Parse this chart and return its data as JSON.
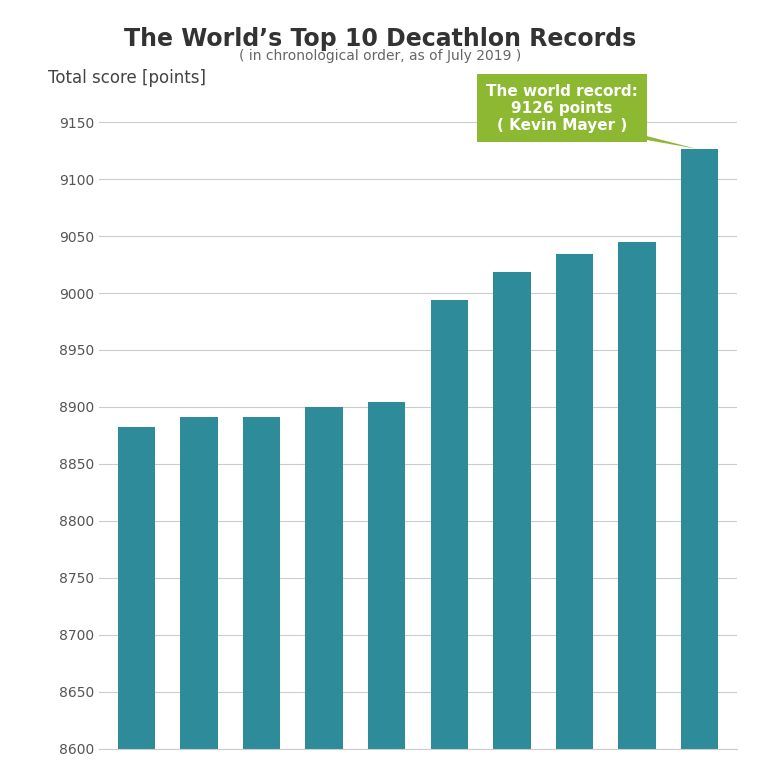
{
  "title": "The World’s Top 10 Decathlon Records",
  "subtitle": "( in chronological order, as of July 2019 )",
  "ylabel": "Total score [points]",
  "values": [
    8882,
    8891,
    8891,
    8900,
    8904,
    8994,
    9018,
    9034,
    9045,
    9126
  ],
  "bar_color": "#2e8b9a",
  "ylim": [
    8600,
    9175
  ],
  "yticks": [
    8600,
    8650,
    8700,
    8750,
    8800,
    8850,
    8900,
    8950,
    9000,
    9050,
    9100,
    9150
  ],
  "annotation_line1": "The world record:",
  "annotation_line2": "9126 points",
  "annotation_line3": "( Kevin Mayer )",
  "annotation_box_color": "#8db832",
  "annotation_text_color": "#ffffff",
  "background_color": "#ffffff",
  "title_color": "#333333",
  "subtitle_color": "#666666",
  "ylabel_color": "#444444",
  "grid_color": "#cccccc",
  "tick_color": "#555555",
  "tick_fontsize": 10,
  "ylabel_fontsize": 12,
  "title_fontsize": 17,
  "subtitle_fontsize": 10
}
